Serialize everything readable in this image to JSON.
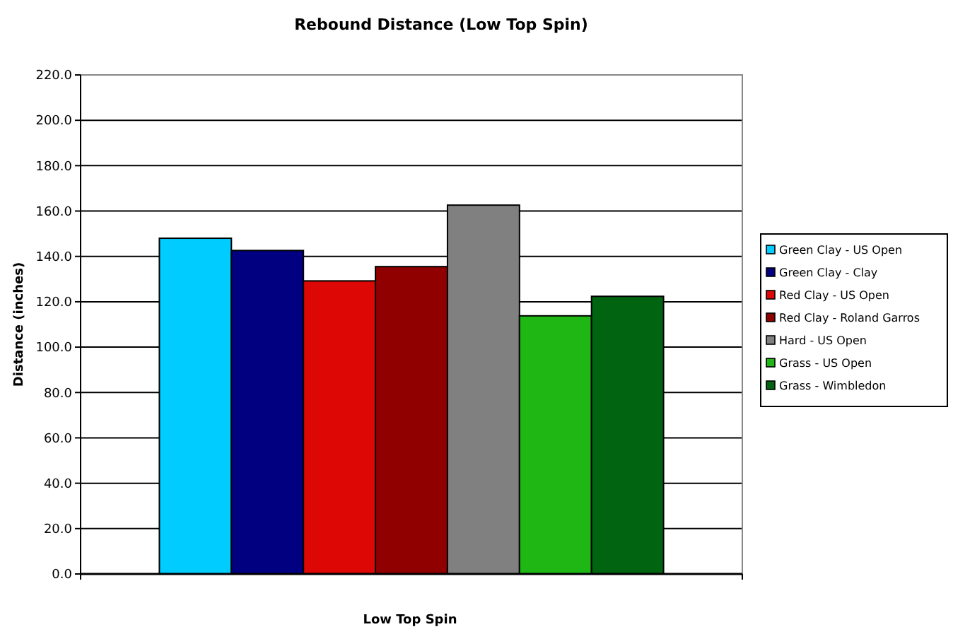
{
  "chart_data": {
    "type": "bar",
    "title": "Rebound Distance (Low Top Spin)",
    "xlabel": "Low Top Spin",
    "ylabel": "Distance (inches)",
    "categories": [
      null
    ],
    "series": [
      {
        "name": "Green Clay - US Open",
        "color": "#00ccff",
        "values": [
          148.0
        ]
      },
      {
        "name": "Green Clay - Clay",
        "color": "#000080",
        "values": [
          142.6
        ]
      },
      {
        "name": "Red Clay - US Open",
        "color": "#dd0806",
        "values": [
          129.2
        ]
      },
      {
        "name": "Red Clay - Roland Garros",
        "color": "#900000",
        "values": [
          135.5
        ]
      },
      {
        "name": "Hard - US Open",
        "color": "#808080",
        "values": [
          162.6
        ]
      },
      {
        "name": "Grass - US Open",
        "color": "#1fb714",
        "values": [
          113.8
        ]
      },
      {
        "name": "Grass - Wimbledon",
        "color": "#006411",
        "values": [
          122.4
        ]
      }
    ],
    "ylim": [
      0,
      220
    ],
    "yticks": [
      {
        "value": 0,
        "label": "0.0"
      },
      {
        "value": 20,
        "label": "20.0"
      },
      {
        "value": 40,
        "label": "40.0"
      },
      {
        "value": 60,
        "label": "60.0"
      },
      {
        "value": 80,
        "label": "80.0"
      },
      {
        "value": 100,
        "label": "100.0"
      },
      {
        "value": 120,
        "label": "120.0"
      },
      {
        "value": 140,
        "label": "140.0"
      },
      {
        "value": 160,
        "label": "160.0"
      },
      {
        "value": 180,
        "label": "180.0"
      },
      {
        "value": 200,
        "label": "200.0"
      },
      {
        "value": 220,
        "label": "220.0"
      }
    ],
    "grid": "y",
    "legend": "right"
  }
}
